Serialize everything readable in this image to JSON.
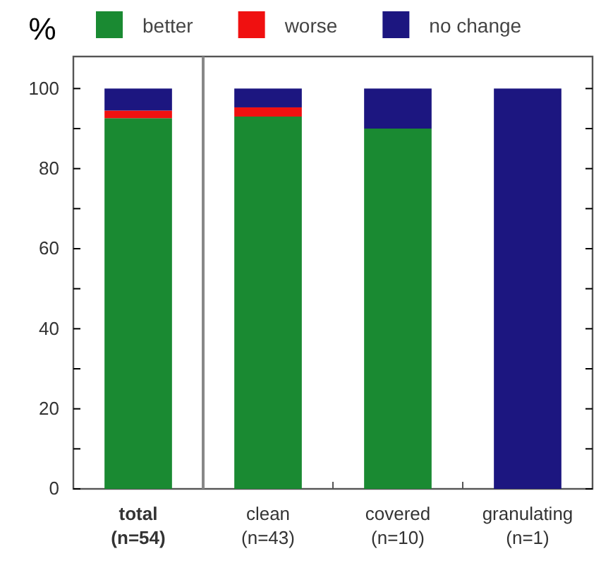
{
  "chart_data": {
    "type": "bar",
    "stacked": true,
    "ylabel": "%",
    "categories": [
      "total\n(n=54)",
      "clean\n(n=43)",
      "covered\n(n=10)",
      "granulating\n(n=1)"
    ],
    "series": [
      {
        "name": "better",
        "color": "#1a8a32",
        "values": [
          92.6,
          93.0,
          90,
          0
        ]
      },
      {
        "name": "worse",
        "color": "#f01010",
        "values": [
          1.9,
          2.3,
          0,
          0
        ]
      },
      {
        "name": "no change",
        "color": "#1c1680",
        "values": [
          5.5,
          4.7,
          10,
          100
        ]
      }
    ],
    "ylim": [
      0,
      108
    ],
    "yticks": [
      0,
      {
        "value": 10,
        "label": null
      },
      20,
      {
        "value": 30,
        "label": null
      },
      40,
      {
        "value": 50,
        "label": null
      },
      60,
      {
        "value": 70,
        "label": null
      },
      80,
      {
        "value": 90,
        "label": null
      },
      100
    ],
    "legend": "top",
    "grid": false
  }
}
